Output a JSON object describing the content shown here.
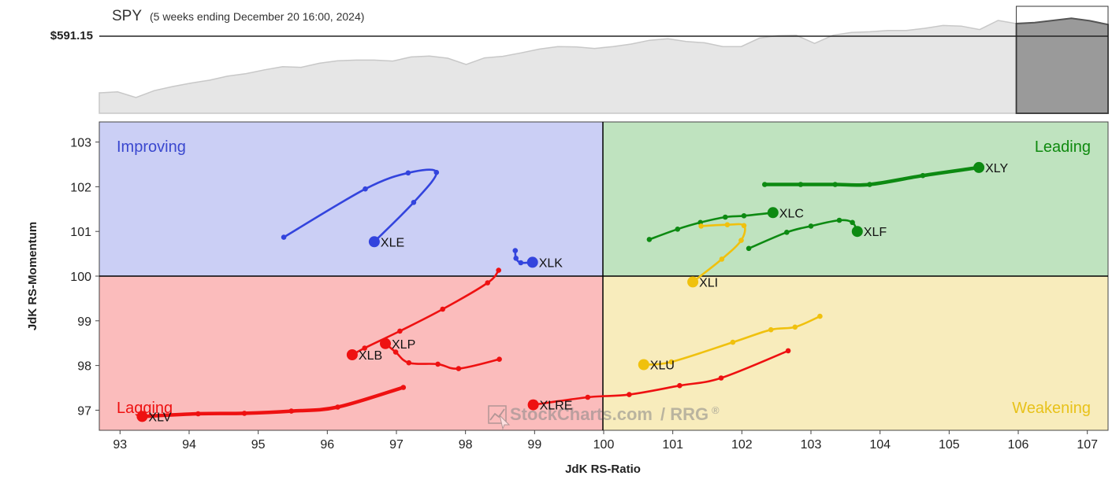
{
  "header": {
    "symbol": "SPY",
    "subtitle": "(5 weeks ending December 20 16:00, 2024)",
    "price_label": "$591.15"
  },
  "axes": {
    "xlabel": "JdK RS-Ratio",
    "ylabel": "JdK RS-Momentum",
    "xticks": [
      "93",
      "94",
      "95",
      "96",
      "97",
      "98",
      "99",
      "100",
      "101",
      "102",
      "103",
      "104",
      "105",
      "106",
      "107"
    ],
    "yticks": [
      "103",
      "102",
      "101",
      "100",
      "99",
      "98",
      "97"
    ]
  },
  "quadrants": {
    "improving": "Improving",
    "leading": "Leading",
    "lagging": "Lagging",
    "weakening": "Weakening"
  },
  "watermark": {
    "text": "StockCharts.com",
    "suffix": "/ RRG",
    "reg": "®"
  },
  "colors": {
    "improving_bg": "#cbcff5",
    "leading_bg": "#bfe3bf",
    "lagging_bg": "#fbbcbc",
    "weakening_bg": "#f8ecbc",
    "improving_text": "#3a48cf",
    "leading_text": "#0f8a0f",
    "lagging_text": "#ee1111",
    "weakening_text": "#e8c21a",
    "blue": "#3344dd",
    "green": "#0d8a12",
    "red": "#ee1111",
    "yellow": "#f0c10e"
  },
  "chart_data": [
    {
      "type": "area",
      "title": "SPY",
      "price_label": "$591.15",
      "values": [
        576.5,
        576.8,
        575.0,
        577.2,
        578.5,
        579.6,
        580.5,
        581.8,
        582.6,
        583.8,
        584.8,
        584.6,
        585.9,
        586.7,
        586.9,
        586.9,
        586.6,
        587.9,
        588.2,
        587.5,
        585.5,
        587.6,
        588.1,
        589.2,
        590.4,
        591.2,
        591.1,
        590.6,
        591.2,
        592.0,
        593.2,
        593.7,
        592.8,
        592.4,
        591.2,
        591.2,
        593.9,
        594.7,
        594.8,
        592.2,
        594.8,
        595.7,
        595.9,
        596.3,
        596.3,
        597.0,
        597.9,
        597.7,
        596.6,
        599.5,
        598.5,
        598.8,
        599.5,
        600.2,
        599.4,
        598.2
      ]
    },
    {
      "type": "scatter",
      "title": "",
      "xlabel": "JdK RS-Ratio",
      "ylabel": "JdK RS-Momentum",
      "xlim": [
        92.7,
        107.3
      ],
      "ylim": [
        96.55,
        103.45
      ],
      "center": [
        100,
        100
      ],
      "series": [
        {
          "name": "XLE",
          "color": "blue",
          "points": [
            [
              95.37,
              100.87
            ],
            [
              96.55,
              101.95
            ],
            [
              97.17,
              102.31
            ],
            [
              97.58,
              102.32
            ],
            [
              97.25,
              101.65
            ],
            [
              96.68,
              100.77
            ]
          ]
        },
        {
          "name": "XLK",
          "color": "blue",
          "points": [
            [
              98.72,
              100.57
            ],
            [
              98.73,
              100.4
            ],
            [
              98.8,
              100.3
            ],
            [
              98.97,
              100.31
            ]
          ]
        },
        {
          "name": "XLY",
          "color": "green",
          "points": [
            [
              102.33,
              102.05
            ],
            [
              102.85,
              102.05
            ],
            [
              103.35,
              102.05
            ],
            [
              103.85,
              102.05
            ],
            [
              104.62,
              102.25
            ],
            [
              105.43,
              102.43
            ]
          ]
        },
        {
          "name": "XLC",
          "color": "green",
          "points": [
            [
              100.66,
              100.82
            ],
            [
              101.07,
              101.05
            ],
            [
              101.4,
              101.2
            ],
            [
              101.76,
              101.32
            ],
            [
              102.03,
              101.35
            ],
            [
              102.45,
              101.42
            ]
          ]
        },
        {
          "name": "XLF",
          "color": "green",
          "points": [
            [
              102.1,
              100.62
            ],
            [
              102.65,
              100.98
            ],
            [
              103.0,
              101.12
            ],
            [
              103.41,
              101.25
            ],
            [
              103.6,
              101.2
            ],
            [
              103.67,
              101.0
            ]
          ]
        },
        {
          "name": "XLI",
          "color": "yellow",
          "points": [
            [
              101.41,
              101.12
            ],
            [
              101.79,
              101.15
            ],
            [
              102.03,
              101.13
            ],
            [
              101.99,
              100.8
            ],
            [
              101.71,
              100.38
            ],
            [
              101.29,
              99.87
            ]
          ]
        },
        {
          "name": "XLU",
          "color": "yellow",
          "points": [
            [
              103.13,
              99.1
            ],
            [
              102.77,
              98.86
            ],
            [
              102.42,
              98.8
            ],
            [
              101.87,
              98.52
            ],
            [
              100.98,
              98.08
            ],
            [
              100.58,
              98.02
            ]
          ]
        },
        {
          "name": "XLRE",
          "color": "red",
          "points": [
            [
              102.67,
              98.33
            ],
            [
              101.7,
              97.72
            ],
            [
              101.1,
              97.55
            ],
            [
              100.37,
              97.35
            ],
            [
              99.77,
              97.29
            ],
            [
              98.98,
              97.12
            ]
          ]
        },
        {
          "name": "XLP",
          "color": "red",
          "points": [
            [
              98.49,
              98.14
            ],
            [
              97.9,
              97.93
            ],
            [
              97.6,
              98.03
            ],
            [
              97.18,
              98.06
            ],
            [
              96.99,
              98.3
            ],
            [
              96.84,
              98.49
            ]
          ]
        },
        {
          "name": "XLB",
          "color": "red",
          "points": [
            [
              98.48,
              100.13
            ],
            [
              98.32,
              99.85
            ],
            [
              97.67,
              99.26
            ],
            [
              97.05,
              98.77
            ],
            [
              96.54,
              98.39
            ],
            [
              96.36,
              98.24
            ]
          ]
        },
        {
          "name": "XLV",
          "color": "red",
          "points": [
            [
              97.1,
              97.51
            ],
            [
              96.15,
              97.07
            ],
            [
              95.48,
              96.98
            ],
            [
              94.8,
              96.93
            ],
            [
              94.13,
              96.92
            ],
            [
              93.32,
              96.86
            ]
          ]
        }
      ]
    }
  ]
}
